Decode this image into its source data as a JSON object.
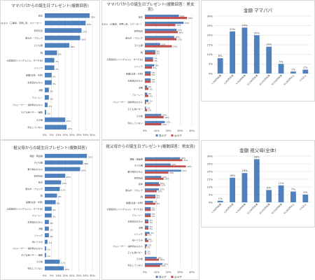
{
  "colors": {
    "blue": "#4f81bd",
    "red": "#c0504d",
    "grid": "#d9d9d9",
    "text": "#404040"
  },
  "chart_data": [
    {
      "type": "bar",
      "orientation": "horizontal",
      "title": "ママパパからの誕生日プレゼント(複数回答)",
      "categories": [
        "絵本",
        "乗り物おもちゃ（三輪車、手押し車、スケーター）",
        "知育玩具",
        "積み木・ブロック",
        "子ども服",
        "靴",
        "大型遊具(ジャングルジム・すべり台)",
        "ジャック",
        "楽器(太鼓・木琴)",
        "お風呂おもちゃ",
        "洋服",
        "ブルーレー",
        "ブルドーザー・消防車おもちゃ",
        "子ども用バギー・補助",
        "その他",
        "何もしていない"
      ],
      "series": [
        {
          "values": [
            33,
            30,
            27,
            26,
            18,
            9,
            7,
            7,
            5,
            5,
            3,
            3,
            2,
            1,
            15,
            16
          ]
        }
      ],
      "value_labels": [
        "33%",
        "30%",
        "27%",
        "26%",
        "18%",
        "9%",
        "7%",
        "7%",
        "5%",
        "5%",
        "3%",
        "3%",
        "2%",
        "1%",
        "15%",
        "16%"
      ],
      "xlim": [
        0,
        35
      ],
      "xticks": [
        "0%",
        "5%",
        "10%",
        "15%",
        "20%",
        "25%",
        "30%",
        "35%"
      ]
    },
    {
      "type": "bar",
      "orientation": "horizontal",
      "title": "ママパパからの誕生日プレゼント(複数回答：男女別)",
      "categories": [
        "絵本",
        "乗り物おもちゃ（三輪車、手押し車、スケーター）",
        "知育玩具",
        "積み木・ブロック",
        "子ども服",
        "靴",
        "大型遊具(ジャングルジム・すべり台)",
        "ジャック",
        "楽器(太鼓・木琴)",
        "お風呂おもちゃ",
        "洋服",
        "ブルーレー",
        "ブルドーザー・消防車おもちゃ",
        "子ども用バギー",
        "その他",
        "何もしていない"
      ],
      "series": [
        {
          "name": "男の子",
          "values": [
            29,
            33,
            27,
            25,
            13,
            9,
            7,
            8,
            5,
            5,
            2,
            2,
            3,
            1,
            14,
            17
          ]
        },
        {
          "name": "女の子",
          "values": [
            36,
            26,
            28,
            27,
            23,
            9,
            7,
            6,
            5,
            5,
            3,
            3,
            1,
            2,
            16,
            14
          ]
        }
      ],
      "value_labels": [
        [
          "29%",
          "33%",
          "27%",
          "25%",
          "13%",
          "9%",
          "7%",
          "8%",
          "5%",
          "5%",
          "2%",
          "2%",
          "3%",
          "1%",
          "14%",
          "17%"
        ],
        [
          "36%",
          "26%",
          "28%",
          "27%",
          "23%",
          "9%",
          "7%",
          "6%",
          "5%",
          "5%",
          "3%",
          "3%",
          "1%",
          "2%",
          "16%",
          "14%"
        ]
      ],
      "xlim": [
        0,
        40
      ],
      "xticks": [
        "0%",
        "10%",
        "20%",
        "30%",
        "40%"
      ]
    },
    {
      "type": "bar",
      "title": "金額 ママパパ",
      "categories": [
        "1,000円未満",
        "3,000円未満",
        "5,000円未満",
        "10,000円未満",
        "20,000円未満",
        "30,000円未満",
        "30,000円以上",
        "それ以上"
      ],
      "values": [
        8,
        22,
        24,
        20,
        14,
        5,
        1,
        2
      ],
      "value_labels": [
        "8%",
        "22%",
        "24%",
        "20%",
        "14%",
        "5%",
        "1%",
        "2%"
      ],
      "ylim": [
        0,
        30
      ],
      "yticks": [
        "0%",
        "5%",
        "10%",
        "15%",
        "20%",
        "25%",
        "30%"
      ]
    },
    {
      "type": "bar",
      "orientation": "horizontal",
      "title": "祖父母からの誕生日プレゼント(複数回答)",
      "categories": [
        "現金・商品券",
        "子ども服",
        "乗り物おもちゃ",
        "知育玩具",
        "絵本",
        "積み木・ブロック",
        "靴",
        "楽器(太鼓・木琴)",
        "大型遊具(ジャングルジム・すべり台)",
        "ブルーレー",
        "お風呂おもちゃ",
        "洋服",
        "ジャック",
        "ぬいぐるみ",
        "ブルドーザー・消防車おもちゃ",
        "子ども用バギー・補助",
        "その他",
        "何もしていない"
      ],
      "series": [
        {
          "values": [
            31,
            28,
            26,
            15,
            12,
            11,
            9,
            8,
            5,
            5,
            3,
            3,
            3,
            2,
            1,
            1,
            11,
            14
          ]
        }
      ],
      "value_labels": [
        "31%",
        "28%",
        "26%",
        "15%",
        "12%",
        "11%",
        "9%",
        "8%",
        "5%",
        "5%",
        "3%",
        "3%",
        "3%",
        "2%",
        "1%",
        "1%",
        "11%",
        "14%"
      ],
      "xlim": [
        0,
        35
      ],
      "xticks": [
        "0%",
        "5%",
        "10%",
        "15%",
        "20%",
        "25%",
        "30%",
        "35%"
      ]
    },
    {
      "type": "bar",
      "orientation": "horizontal",
      "title": "祖父母からの誕生日プレゼント(複数回答：男女別)",
      "categories": [
        "現金・商品券",
        "子ども服",
        "乗り物おもちゃ",
        "知育玩具",
        "絵本",
        "積み木・ブロック",
        "靴",
        "楽器(太鼓・木琴)",
        "大型遊具(ジャングルジム・すべり台)",
        "ブルーレー",
        "お風呂おもちゃ",
        "洋服",
        "ジャック",
        "ぬいぐるみ",
        "ブルドーザー・消防車おもちゃ",
        "子ども用バギー",
        "その他",
        "何もしていない"
      ],
      "series": [
        {
          "name": "男の子",
          "values": [
            30,
            22,
            31,
            14,
            12,
            12,
            9,
            7,
            5,
            5,
            3,
            3,
            4,
            2,
            2,
            1,
            10,
            15
          ]
        },
        {
          "name": "女の子",
          "values": [
            32,
            35,
            20,
            16,
            13,
            10,
            9,
            9,
            5,
            5,
            3,
            3,
            2,
            3,
            1,
            1,
            12,
            13
          ]
        }
      ],
      "value_labels": [
        [
          "30%",
          "22%",
          "31%",
          "14%",
          "12%",
          "12%",
          "9%",
          "7%",
          "5%",
          "5%",
          "3%",
          "3%",
          "4%",
          "2%",
          "2%",
          "1%",
          "10%",
          "15%"
        ],
        [
          "32%",
          "35%",
          "20%",
          "16%",
          "13%",
          "10%",
          "9%",
          "9%",
          "5%",
          "5%",
          "3%",
          "3%",
          "2%",
          "3%",
          "1%",
          "1%",
          "12%",
          "13%"
        ]
      ],
      "xlim": [
        0,
        40
      ],
      "xticks": [
        "0%",
        "10%",
        "20%",
        "30%",
        "40%"
      ]
    },
    {
      "type": "bar",
      "title": "金額 祖父母(全体)",
      "categories": [
        "1,000円未満",
        "3,000円未満",
        "5,000円未満",
        "10,000円未満",
        "20,000円未満",
        "30,000円未満",
        "30,000円以上",
        "それ以上"
      ],
      "values": [
        1,
        16,
        19,
        28,
        8,
        11,
        7,
        5
      ],
      "value_labels": [
        "1%",
        "16%",
        "19%",
        "28%",
        "8%",
        "11%",
        "7%",
        "5%"
      ],
      "ylim": [
        0,
        30
      ],
      "yticks": [
        "0%",
        "5%",
        "10%",
        "15%",
        "20%",
        "25%",
        "30%"
      ]
    }
  ]
}
